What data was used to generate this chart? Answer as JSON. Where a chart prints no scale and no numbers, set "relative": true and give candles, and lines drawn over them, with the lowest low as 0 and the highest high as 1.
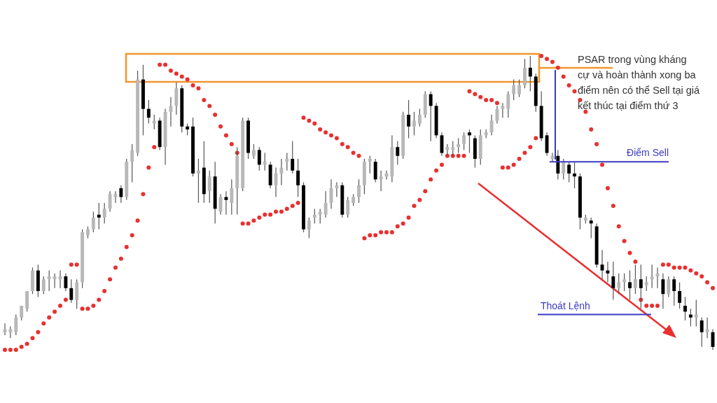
{
  "chart_data": {
    "type": "candlestick",
    "relative": true,
    "categories": [
      null,
      null,
      null,
      null,
      null,
      null,
      null,
      null,
      null,
      null,
      null,
      null,
      null,
      null,
      null,
      null,
      null,
      null,
      null,
      null,
      null,
      null,
      null,
      null,
      null,
      null,
      null,
      null,
      null,
      null,
      null,
      null,
      null,
      null,
      null,
      null,
      null,
      null,
      null,
      null,
      null,
      null,
      null,
      null,
      null,
      null,
      null,
      null,
      null,
      null,
      null,
      null,
      null,
      null,
      null,
      null,
      null,
      null,
      null,
      null,
      null,
      null,
      null,
      null,
      null,
      null,
      null,
      null,
      null,
      null,
      null,
      null,
      null,
      null,
      null,
      null,
      null,
      null,
      null,
      null,
      null,
      null,
      null,
      null,
      null,
      null,
      null,
      null,
      null,
      null,
      null,
      null,
      null,
      null,
      null,
      null,
      null,
      null,
      null,
      null,
      null,
      null,
      null,
      null,
      null,
      null,
      null,
      null,
      null,
      null,
      null,
      null,
      null,
      null,
      null,
      null,
      null,
      null,
      null,
      null,
      null,
      null,
      null,
      null,
      null,
      null,
      null,
      null,
      null
    ],
    "ohlc": [
      [
        0.06,
        0.09,
        0.05,
        0.07
      ],
      [
        0.06,
        0.08,
        0.04,
        0.07
      ],
      [
        0.06,
        0.12,
        0.05,
        0.11
      ],
      [
        0.11,
        0.15,
        0.1,
        0.15
      ],
      [
        0.14,
        0.2,
        0.13,
        0.2
      ],
      [
        0.2,
        0.28,
        0.19,
        0.27
      ],
      [
        0.27,
        0.29,
        0.18,
        0.2
      ],
      [
        0.2,
        0.25,
        0.19,
        0.24
      ],
      [
        0.24,
        0.27,
        0.2,
        0.25
      ],
      [
        0.24,
        0.26,
        0.21,
        0.25
      ],
      [
        0.24,
        0.27,
        0.21,
        0.25
      ],
      [
        0.25,
        0.26,
        0.2,
        0.21
      ],
      [
        0.21,
        0.24,
        0.16,
        0.17
      ],
      [
        0.17,
        0.24,
        0.14,
        0.23
      ],
      [
        0.23,
        0.41,
        0.21,
        0.4
      ],
      [
        0.39,
        0.42,
        0.38,
        0.41
      ],
      [
        0.41,
        0.47,
        0.4,
        0.45
      ],
      [
        0.46,
        0.5,
        0.41,
        0.45
      ],
      [
        0.45,
        0.5,
        0.43,
        0.48
      ],
      [
        0.48,
        0.54,
        0.47,
        0.53
      ],
      [
        0.52,
        0.54,
        0.5,
        0.53
      ],
      [
        0.55,
        0.56,
        0.5,
        0.52
      ],
      [
        0.52,
        0.65,
        0.51,
        0.64
      ],
      [
        0.64,
        0.7,
        0.57,
        0.68
      ],
      [
        0.67,
        0.95,
        0.66,
        0.92
      ],
      [
        0.92,
        0.97,
        0.73,
        0.82
      ],
      [
        0.82,
        0.85,
        0.77,
        0.79
      ],
      [
        0.77,
        0.8,
        0.75,
        0.78
      ],
      [
        0.78,
        0.79,
        0.68,
        0.69
      ],
      [
        0.69,
        0.82,
        0.63,
        0.81
      ],
      [
        0.81,
        0.86,
        0.76,
        0.83
      ],
      [
        0.83,
        0.91,
        0.8,
        0.89
      ],
      [
        0.89,
        0.9,
        0.74,
        0.76
      ],
      [
        0.76,
        0.77,
        0.73,
        0.75
      ],
      [
        0.76,
        0.79,
        0.59,
        0.6
      ],
      [
        0.6,
        0.65,
        0.5,
        0.61
      ],
      [
        0.62,
        0.71,
        0.5,
        0.53
      ],
      [
        0.54,
        0.61,
        0.5,
        0.59
      ],
      [
        0.59,
        0.64,
        0.43,
        0.48
      ],
      [
        0.47,
        0.53,
        0.46,
        0.52
      ],
      [
        0.52,
        0.54,
        0.46,
        0.51
      ],
      [
        0.5,
        0.58,
        0.46,
        0.55
      ],
      [
        0.55,
        0.69,
        0.46,
        0.66
      ],
      [
        0.55,
        0.79,
        0.54,
        0.78
      ],
      [
        0.78,
        0.79,
        0.65,
        0.67
      ],
      [
        0.66,
        0.7,
        0.65,
        0.68
      ],
      [
        0.68,
        0.69,
        0.61,
        0.63
      ],
      [
        0.63,
        0.67,
        0.61,
        0.64
      ],
      [
        0.63,
        0.64,
        0.55,
        0.56
      ],
      [
        0.56,
        0.62,
        0.52,
        0.6
      ],
      [
        0.6,
        0.65,
        0.56,
        0.62
      ],
      [
        0.64,
        0.67,
        0.61,
        0.65
      ],
      [
        0.65,
        0.71,
        0.6,
        0.61
      ],
      [
        0.61,
        0.65,
        0.52,
        0.56
      ],
      [
        0.56,
        0.57,
        0.4,
        0.41
      ],
      [
        0.41,
        0.45,
        0.38,
        0.44
      ],
      [
        0.45,
        0.48,
        0.43,
        0.46
      ],
      [
        0.46,
        0.48,
        0.43,
        0.47
      ],
      [
        0.46,
        0.54,
        0.45,
        0.5
      ],
      [
        0.5,
        0.58,
        0.48,
        0.55
      ],
      [
        0.55,
        0.57,
        0.52,
        0.56
      ],
      [
        0.56,
        0.57,
        0.45,
        0.46
      ],
      [
        0.46,
        0.52,
        0.45,
        0.51
      ],
      [
        0.5,
        0.53,
        0.49,
        0.52
      ],
      [
        0.52,
        0.58,
        0.5,
        0.56
      ],
      [
        0.56,
        0.65,
        0.53,
        0.64
      ],
      [
        0.64,
        0.66,
        0.6,
        0.65
      ],
      [
        0.64,
        0.65,
        0.57,
        0.58
      ],
      [
        0.58,
        0.61,
        0.54,
        0.59
      ],
      [
        0.59,
        0.61,
        0.58,
        0.6
      ],
      [
        0.59,
        0.73,
        0.57,
        0.69
      ],
      [
        0.69,
        0.71,
        0.63,
        0.66
      ],
      [
        0.66,
        0.81,
        0.65,
        0.8
      ],
      [
        0.8,
        0.85,
        0.72,
        0.76
      ],
      [
        0.76,
        0.81,
        0.73,
        0.78
      ],
      [
        0.77,
        0.82,
        0.76,
        0.8
      ],
      [
        0.8,
        0.88,
        0.79,
        0.87
      ],
      [
        0.87,
        0.88,
        0.71,
        0.83
      ],
      [
        0.83,
        0.84,
        0.72,
        0.73
      ],
      [
        0.73,
        0.74,
        0.66,
        0.67
      ],
      [
        0.68,
        0.7,
        0.66,
        0.69
      ],
      [
        0.68,
        0.71,
        0.66,
        0.69
      ],
      [
        0.69,
        0.72,
        0.67,
        0.7
      ],
      [
        0.7,
        0.74,
        0.68,
        0.73
      ],
      [
        0.74,
        0.75,
        0.67,
        0.73
      ],
      [
        0.72,
        0.73,
        0.62,
        0.65
      ],
      [
        0.65,
        0.75,
        0.63,
        0.73
      ],
      [
        0.73,
        0.75,
        0.72,
        0.74
      ],
      [
        0.74,
        0.8,
        0.73,
        0.78
      ],
      [
        0.78,
        0.83,
        0.77,
        0.82
      ],
      [
        0.82,
        0.84,
        0.79,
        0.83
      ],
      [
        0.82,
        0.88,
        0.79,
        0.87
      ],
      [
        0.87,
        0.92,
        0.85,
        0.9
      ],
      [
        0.87,
        0.92,
        0.86,
        0.9
      ],
      [
        0.9,
        0.99,
        0.89,
        0.96
      ],
      [
        0.96,
        1,
        0.88,
        0.93
      ],
      [
        0.93,
        0.94,
        0.81,
        0.83
      ],
      [
        0.83,
        0.88,
        0.71,
        0.72
      ],
      [
        0.73,
        0.74,
        0.66,
        0.67
      ],
      [
        0.65,
        0.67,
        0.64,
        0.66
      ],
      [
        0.66,
        0.68,
        0.58,
        0.6
      ],
      [
        0.6,
        0.65,
        0.58,
        0.64
      ],
      [
        0.63,
        0.64,
        0.57,
        0.6
      ],
      [
        0.6,
        0.64,
        0.55,
        0.59
      ],
      [
        0.59,
        0.6,
        0.41,
        0.45
      ],
      [
        0.44,
        0.46,
        0.43,
        0.45
      ],
      [
        0.44,
        0.45,
        0.38,
        0.43
      ],
      [
        0.42,
        0.43,
        0.28,
        0.29
      ],
      [
        0.29,
        0.34,
        0.24,
        0.27
      ],
      [
        0.27,
        0.3,
        0.23,
        0.26
      ],
      [
        0.25,
        0.3,
        0.17,
        0.21
      ],
      [
        0.21,
        0.26,
        0.19,
        0.23
      ],
      [
        0.23,
        0.26,
        0.2,
        0.24
      ],
      [
        0.23,
        0.27,
        0.17,
        0.21
      ],
      [
        0.21,
        0.29,
        0.19,
        0.24
      ],
      [
        0.24,
        0.29,
        0.14,
        0.21
      ],
      [
        0.22,
        0.25,
        0.2,
        0.23
      ],
      [
        0.24,
        0.29,
        0.21,
        0.25
      ],
      [
        0.25,
        0.28,
        0.21,
        0.26
      ],
      [
        0.24,
        0.26,
        0.14,
        0.19
      ],
      [
        0.19,
        0.25,
        0.18,
        0.24
      ],
      [
        0.24,
        0.25,
        0.15,
        0.2
      ],
      [
        0.2,
        0.23,
        0.14,
        0.16
      ],
      [
        0.15,
        0.18,
        0.1,
        0.13
      ],
      [
        0.12,
        0.14,
        0.08,
        0.11
      ],
      [
        0.11,
        0.17,
        0.08,
        0.12
      ],
      [
        0.1,
        0.11,
        0.01,
        0.06
      ],
      [
        0.06,
        0.11,
        0.04,
        0.07
      ],
      [
        0.06,
        0.07,
        0,
        0.01
      ]
    ],
    "series": [
      {
        "type": "scatter",
        "color": "#e8302f",
        "marker": "circle",
        "values": [
          0,
          0,
          0,
          0.01,
          0.02,
          0.04,
          0.06,
          0.09,
          0.11,
          0.13,
          0.15,
          0.17,
          0.29,
          0.29,
          0.14,
          0.14,
          0.15,
          0.17,
          0.2,
          0.24,
          0.28,
          0.31,
          0.35,
          0.39,
          0.44,
          0.53,
          0.62,
          0.69,
          0.97,
          0.97,
          0.95,
          0.94,
          0.93,
          0.92,
          0.9,
          0.89,
          0.85,
          0.83,
          0.8,
          0.76,
          0.73,
          0.7,
          0.67,
          0.43,
          0.43,
          0.44,
          0.45,
          0.46,
          0.46,
          0.47,
          0.47,
          0.48,
          0.49,
          0.5,
          0.79,
          0.78,
          0.77,
          0.75,
          0.74,
          0.73,
          0.72,
          0.7,
          0.69,
          0.67,
          0.66,
          0.38,
          0.39,
          0.39,
          0.4,
          0.4,
          0.4,
          0.42,
          0.43,
          0.45,
          0.49,
          0.51,
          0.54,
          0.58,
          0.61,
          0.63,
          0.66,
          0.66,
          0.66,
          0.66,
          0.88,
          0.87,
          0.86,
          0.85,
          0.85,
          0.84,
          0.62,
          0.62,
          0.63,
          0.65,
          0.67,
          0.69,
          0.72,
          1,
          0.99,
          0.98,
          0.96,
          0.93,
          0.9,
          0.88,
          0.85,
          0.81,
          0.75,
          0.7,
          0.63,
          0.55,
          0.49,
          0.42,
          0.37,
          0.33,
          0.3,
          0.17,
          0.15,
          0.15,
          0.15,
          0.29,
          0.29,
          0.28,
          0.28,
          0.28,
          0.27,
          0.26,
          0.25,
          0.23,
          0.21
        ]
      }
    ],
    "ref_lines": [
      {
        "axis": "y",
        "value": 0.64,
        "label": "Điểm Sell",
        "color": "#3a3ac4"
      },
      {
        "axis": "y",
        "value": 0.12,
        "label": "Thoát Lệnh",
        "color": "#3a3ac4"
      }
    ],
    "annotations": [
      "PSAR trong vùng kháng cự và hoàn thành xong ba điểm nên có thể Sell tại giá kết thúc tại điểm thứ 3"
    ]
  }
}
